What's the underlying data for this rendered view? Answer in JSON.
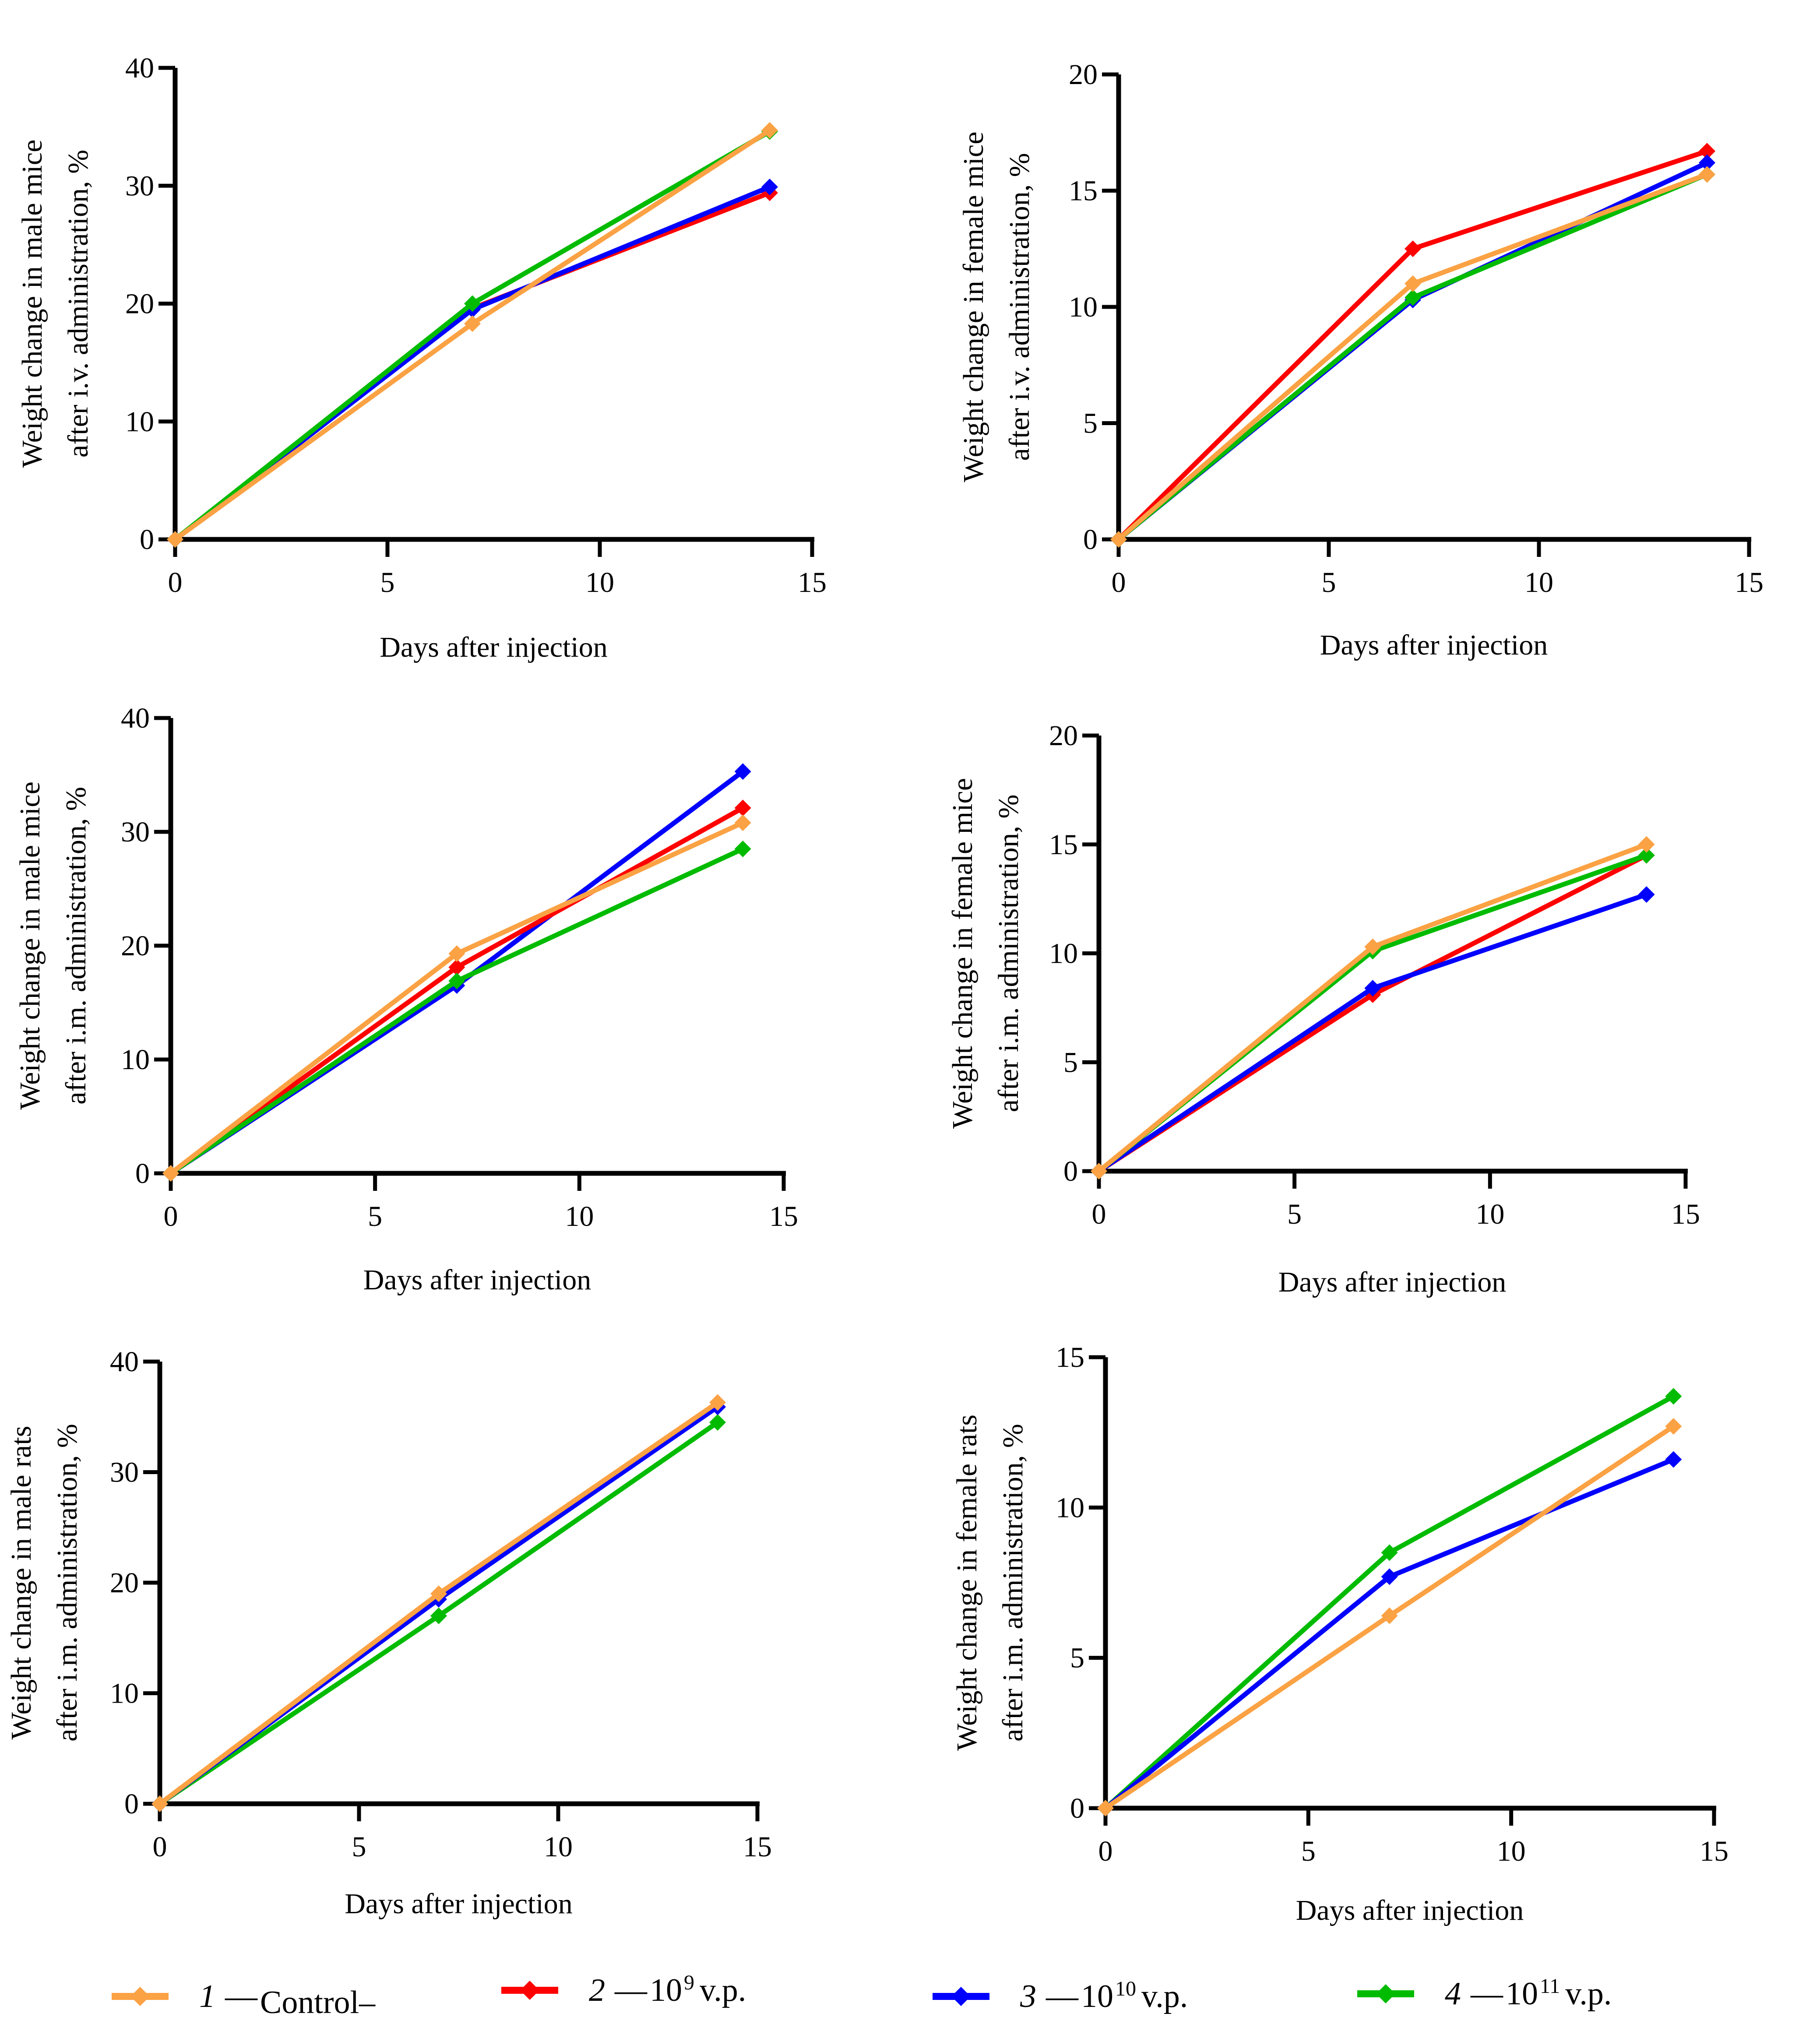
{
  "legend": [
    {
      "id": "control",
      "num": "1",
      "dash": "—",
      "base": "Control–",
      "exp": "",
      "suffix": "",
      "color": "#FBA244"
    },
    {
      "id": "d9",
      "num": "2",
      "dash": "—",
      "base": "10",
      "exp": "9",
      "suffix": "v.p.",
      "color": "#FF0000"
    },
    {
      "id": "d10",
      "num": "3",
      "dash": "—",
      "base": "10",
      "exp": "10",
      "suffix": "v.p.",
      "color": "#0000FF"
    },
    {
      "id": "d11",
      "num": "4",
      "dash": "—",
      "base": "10",
      "exp": "11",
      "suffix": "v.p.",
      "color": "#00BB00"
    }
  ],
  "chart_data": [
    {
      "type": "line",
      "title": "",
      "xlabel": "Days after injection",
      "ylabel": [
        "Weight change in male mice",
        "after i.v. administration, %"
      ],
      "x": [
        0,
        7,
        14
      ],
      "xlim": [
        0,
        15
      ],
      "xticks": [
        0,
        5,
        10,
        15
      ],
      "ylim": [
        0,
        40
      ],
      "yticks": [
        0,
        10,
        20,
        30,
        40
      ],
      "grid": false,
      "series": [
        {
          "name": "2 — 10^9 v.p.",
          "color": "#FF0000",
          "values": [
            0,
            19.6,
            29.4
          ]
        },
        {
          "name": "3 — 10^10 v.p.",
          "color": "#0000FF",
          "values": [
            0,
            19.5,
            29.9
          ]
        },
        {
          "name": "4 — 10^11 v.p.",
          "color": "#00BB00",
          "values": [
            0,
            20.0,
            34.6
          ]
        },
        {
          "name": "1 — Control",
          "color": "#FBA244",
          "values": [
            0,
            18.3,
            34.7
          ]
        }
      ]
    },
    {
      "type": "line",
      "title": "",
      "xlabel": "Days after injection",
      "ylabel": [
        "Weight change in female mice",
        "after i.v. administration, %"
      ],
      "x": [
        0,
        7,
        14
      ],
      "xlim": [
        0,
        15
      ],
      "xticks": [
        0,
        5,
        10,
        15
      ],
      "ylim": [
        0,
        20
      ],
      "yticks": [
        0,
        5,
        10,
        15,
        20
      ],
      "grid": false,
      "series": [
        {
          "name": "2 — 10^9 v.p.",
          "color": "#FF0000",
          "values": [
            0,
            12.5,
            16.7
          ]
        },
        {
          "name": "3 — 10^10 v.p.",
          "color": "#0000FF",
          "values": [
            0,
            10.3,
            16.2
          ]
        },
        {
          "name": "4 — 10^11 v.p.",
          "color": "#00BB00",
          "values": [
            0,
            10.4,
            15.7
          ]
        },
        {
          "name": "1 — Control",
          "color": "#FBA244",
          "values": [
            0,
            11.0,
            15.7
          ]
        }
      ]
    },
    {
      "type": "line",
      "title": "",
      "xlabel": "Days after injection",
      "ylabel": [
        "Weight change in male mice",
        "after i.m. administration, %"
      ],
      "x": [
        0,
        7,
        14
      ],
      "xlim": [
        0,
        15
      ],
      "xticks": [
        0,
        5,
        10,
        15
      ],
      "ylim": [
        0,
        40
      ],
      "yticks": [
        0,
        10,
        20,
        30,
        40
      ],
      "grid": false,
      "series": [
        {
          "name": "3 — 10^10 v.p.",
          "color": "#0000FF",
          "values": [
            0,
            16.5,
            35.3
          ]
        },
        {
          "name": "2 — 10^9 v.p.",
          "color": "#FF0000",
          "values": [
            0,
            18.1,
            32.1
          ]
        },
        {
          "name": "4 — 10^11 v.p.",
          "color": "#00BB00",
          "values": [
            0,
            16.9,
            28.5
          ]
        },
        {
          "name": "1 — Control",
          "color": "#FBA244",
          "values": [
            0,
            19.3,
            30.8
          ]
        }
      ]
    },
    {
      "type": "line",
      "title": "",
      "xlabel": "Days after injection",
      "ylabel": [
        "Weight change in female mice",
        "after i.m. administration, %"
      ],
      "x": [
        0,
        7,
        14
      ],
      "xlim": [
        0,
        15
      ],
      "xticks": [
        0,
        5,
        10,
        15
      ],
      "ylim": [
        0,
        20
      ],
      "yticks": [
        0,
        5,
        10,
        15,
        20
      ],
      "grid": false,
      "series": [
        {
          "name": "2 — 10^9 v.p.",
          "color": "#FF0000",
          "values": [
            0,
            8.1,
            14.5
          ]
        },
        {
          "name": "3 — 10^10 v.p.",
          "color": "#0000FF",
          "values": [
            0,
            8.4,
            12.7
          ]
        },
        {
          "name": "4 — 10^11 v.p.",
          "color": "#00BB00",
          "values": [
            0,
            10.1,
            14.5
          ]
        },
        {
          "name": "1 — Control",
          "color": "#FBA244",
          "values": [
            0,
            10.3,
            15.0
          ]
        }
      ]
    },
    {
      "type": "line",
      "title": "",
      "xlabel": "Days after injection",
      "ylabel": [
        "Weight change in male rats",
        "after i.m. administration, %"
      ],
      "x": [
        0,
        7,
        14
      ],
      "xlim": [
        0,
        15
      ],
      "xticks": [
        0,
        5,
        10,
        15
      ],
      "ylim": [
        0,
        40
      ],
      "yticks": [
        0,
        10,
        20,
        30,
        40
      ],
      "grid": false,
      "series": [
        {
          "name": "4 — 10^11 v.p.",
          "color": "#00BB00",
          "values": [
            0,
            17.0,
            34.5
          ]
        },
        {
          "name": "3 — 10^10 v.p.",
          "color": "#0000FF",
          "values": [
            0,
            18.5,
            35.9
          ]
        },
        {
          "name": "1 — Control",
          "color": "#FBA244",
          "values": [
            0,
            19.0,
            36.3
          ]
        }
      ]
    },
    {
      "type": "line",
      "title": "",
      "xlabel": "Days after injection",
      "ylabel": [
        "Weight change in female rats",
        "after i.m. administration, %"
      ],
      "x": [
        0,
        7,
        14
      ],
      "xlim": [
        0,
        15
      ],
      "xticks": [
        0,
        5,
        10,
        15
      ],
      "ylim": [
        0,
        15
      ],
      "yticks": [
        0,
        5,
        10,
        15
      ],
      "grid": false,
      "series": [
        {
          "name": "4 — 10^11 v.p.",
          "color": "#00BB00",
          "values": [
            0,
            8.5,
            13.7
          ]
        },
        {
          "name": "3 — 10^10 v.p.",
          "color": "#0000FF",
          "values": [
            0,
            7.7,
            11.6
          ]
        },
        {
          "name": "1 — Control",
          "color": "#FBA244",
          "values": [
            0,
            6.4,
            12.7
          ]
        }
      ]
    }
  ]
}
